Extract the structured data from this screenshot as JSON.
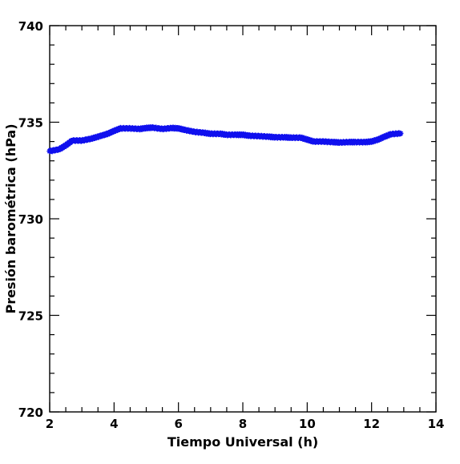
{
  "chart_data": {
    "type": "scatter",
    "xlabel": "Tiempo Universal (h)",
    "ylabel": "Presión barométrica (hPa)",
    "xlim": [
      2,
      14
    ],
    "ylim": [
      720,
      740
    ],
    "x_ticks": [
      2,
      4,
      6,
      8,
      10,
      12,
      14
    ],
    "y_ticks": [
      720,
      725,
      730,
      735,
      740
    ],
    "x_minor_step": 0.5,
    "y_minor_step": 1,
    "grid": false,
    "marker_color": "#1010ee",
    "series": [
      {
        "x": [
          2.0,
          2.3,
          2.5,
          2.7,
          3.0,
          3.3,
          3.5,
          3.8,
          4.0,
          4.2,
          4.5,
          4.8,
          5.0,
          5.2,
          5.5,
          5.8,
          6.0,
          6.2,
          6.5,
          6.8,
          7.0,
          7.3,
          7.5,
          7.8,
          8.0,
          8.2,
          8.5,
          8.8,
          9.0,
          9.3,
          9.5,
          9.8,
          10.0,
          10.2,
          10.5,
          10.8,
          11.0,
          11.3,
          11.5,
          11.8,
          12.0,
          12.2,
          12.4,
          12.6,
          12.9
        ],
        "y": [
          733.5,
          733.6,
          733.8,
          734.05,
          734.05,
          734.15,
          734.25,
          734.4,
          734.55,
          734.68,
          734.68,
          734.65,
          734.7,
          734.72,
          734.65,
          734.7,
          734.68,
          734.6,
          734.5,
          734.45,
          734.4,
          734.4,
          734.35,
          734.35,
          734.35,
          734.3,
          734.28,
          734.25,
          734.22,
          734.22,
          734.2,
          734.2,
          734.1,
          734.0,
          734.0,
          733.97,
          733.95,
          733.97,
          733.97,
          733.97,
          734.0,
          734.1,
          734.25,
          734.38,
          734.42
        ]
      }
    ]
  }
}
